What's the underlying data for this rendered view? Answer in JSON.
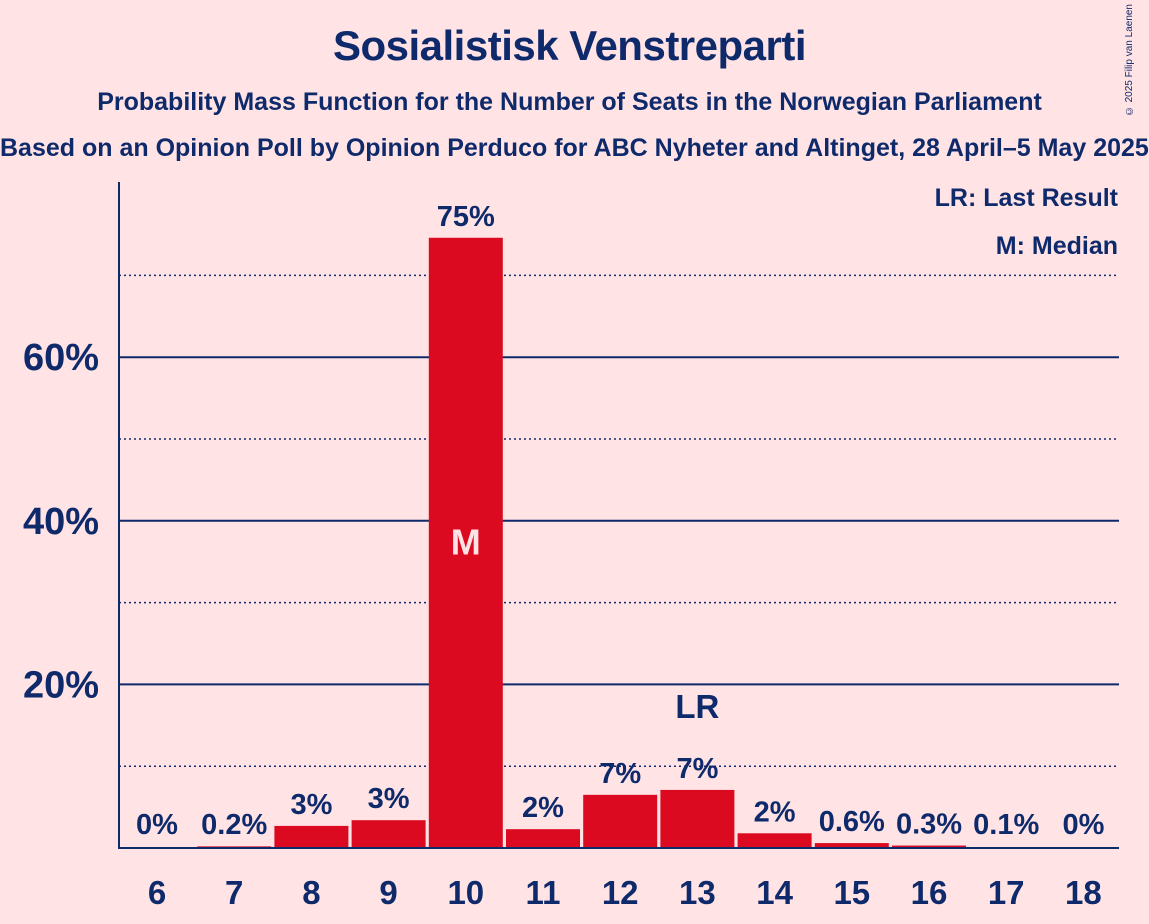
{
  "chart_data": {
    "type": "bar",
    "title": "Sosialistisk Venstreparti",
    "subtitle": "Probability Mass Function for the Number of Seats in the Norwegian Parliament",
    "source": "Based on an Opinion Poll by Opinion Perduco for ABC Nyheter and Altinget, 28 April–5 May 2025",
    "copyright": "© 2025 Filip van Laenen",
    "categories": [
      "6",
      "7",
      "8",
      "9",
      "10",
      "11",
      "12",
      "13",
      "14",
      "15",
      "16",
      "17",
      "18"
    ],
    "values": [
      0,
      0.2,
      2.7,
      3.4,
      74.6,
      2.3,
      6.5,
      7.1,
      1.8,
      0.6,
      0.3,
      0.1,
      0
    ],
    "value_labels": [
      "0%",
      "0.2%",
      "3%",
      "3%",
      "75%",
      "2%",
      "7%",
      "7%",
      "2%",
      "0.6%",
      "0.3%",
      "0.1%",
      "0%"
    ],
    "ylim": [
      0,
      80
    ],
    "y_ticks": [
      {
        "value": 20,
        "label": "20%"
      },
      {
        "value": 40,
        "label": "40%"
      },
      {
        "value": 60,
        "label": "60%"
      }
    ],
    "minor_gridlines": [
      10,
      30,
      50,
      70
    ],
    "median_category": "10",
    "median_marker": "M",
    "last_result_category": "13",
    "last_result_marker": "LR",
    "legend": {
      "last_result": "LR: Last Result",
      "median": "M: Median",
      "placement": "top-right"
    },
    "colors": {
      "bar": "#DC0A20",
      "text": "#0E2A6B",
      "background": "#FFE3E5",
      "median_text": "#FFE3E5"
    }
  }
}
